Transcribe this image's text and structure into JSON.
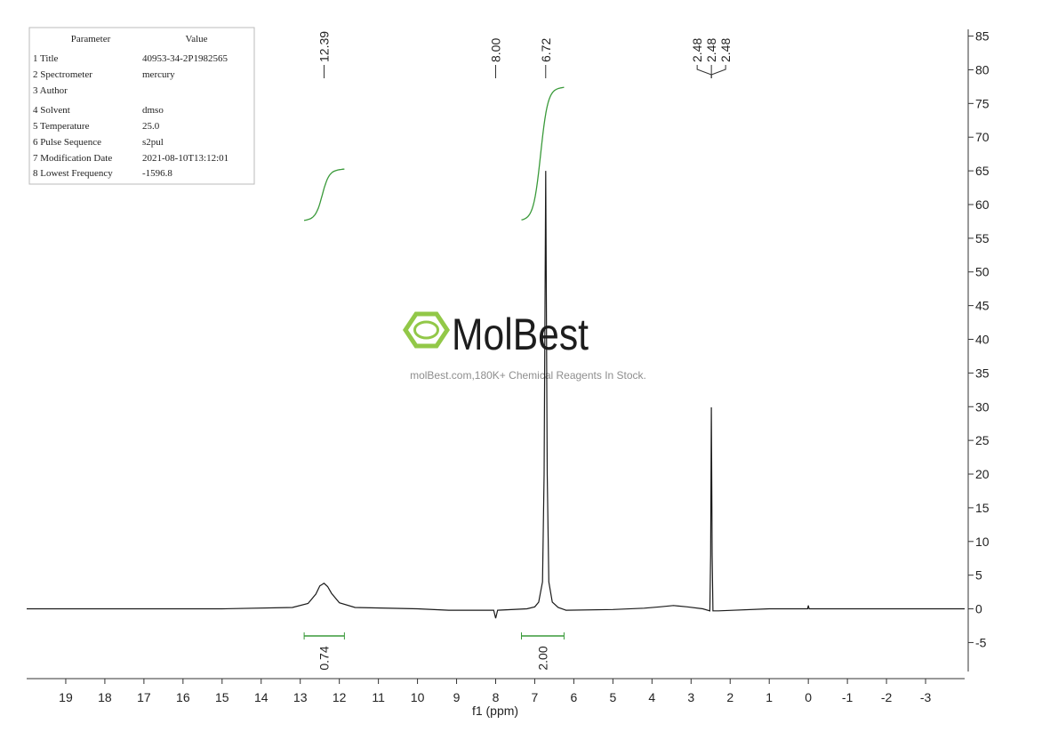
{
  "chart_data": {
    "type": "line",
    "x_label": "f1 (ppm)",
    "x": [
      20,
      15,
      13.2,
      12.8,
      12.6,
      12.5,
      12.39,
      12.3,
      12.2,
      12.0,
      11.6,
      10,
      9.2,
      8.05,
      8.0,
      7.95,
      7.2,
      7.0,
      6.9,
      6.8,
      6.76,
      6.72,
      6.68,
      6.64,
      6.55,
      6.4,
      6.2,
      5,
      4.2,
      3.8,
      3.45,
      3.1,
      2.7,
      2.52,
      2.5,
      2.48,
      2.46,
      2.44,
      2.3,
      1,
      0.02,
      0,
      -0.02,
      -2,
      -4
    ],
    "values": [
      0,
      0,
      0.2,
      0.8,
      2.2,
      3.4,
      3.8,
      3.3,
      2.3,
      0.9,
      0.2,
      0,
      -0.2,
      -0.2,
      -1.4,
      -0.2,
      0,
      0.3,
      1,
      4,
      20,
      65,
      20,
      4,
      1,
      0.2,
      -0.2,
      -0.1,
      0.1,
      0.3,
      0.5,
      0.3,
      0,
      -0.3,
      8,
      29.9,
      8,
      -0.3,
      -0.3,
      0,
      0,
      0.5,
      0,
      0,
      0
    ],
    "color": "#1a1a1a",
    "xlim": [
      20,
      -4
    ],
    "xticks": [
      19,
      18,
      17,
      16,
      15,
      14,
      13,
      12,
      11,
      10,
      9,
      8,
      7,
      6,
      5,
      4,
      3,
      2,
      1,
      0,
      -1,
      -2,
      -3
    ],
    "ylim": [
      -9.3,
      86
    ],
    "yticks": [
      -5,
      0,
      5,
      10,
      15,
      20,
      25,
      30,
      35,
      40,
      45,
      50,
      55,
      60,
      65,
      70,
      75,
      80,
      85
    ],
    "peaks": [
      12.39,
      {
        "value": 8,
        "label": "8.00"
      },
      6.72,
      2.48,
      2.48,
      2.48
    ],
    "integrals": [
      {
        "range": [
          12.9,
          11.87
        ],
        "value": 0.74
      },
      {
        "range": [
          7.34,
          6.25
        ],
        "value": 2,
        "label": "2.00"
      }
    ],
    "integral_color": "#3a9a3a"
  },
  "parameters": {
    "header": [
      "Parameter",
      "Value"
    ],
    "rows": [
      [
        "1 Title",
        "40953-34-2P1982565"
      ],
      [
        "2 Spectrometer",
        "mercury"
      ],
      [
        "3 Author"
      ],
      [
        "4 Solvent",
        "dmso"
      ],
      [
        "5 Temperature",
        "25.0"
      ],
      [
        "6 Pulse Sequence",
        "s2pul"
      ],
      [
        "7 Modification Date",
        "2021-08-10T13:12:01"
      ],
      [
        "8 Lowest Frequency",
        "-1596.8"
      ]
    ]
  },
  "watermark": {
    "logo": "MolBest",
    "text": "molBest.com,180K+ Chemical Reagents In Stock."
  }
}
